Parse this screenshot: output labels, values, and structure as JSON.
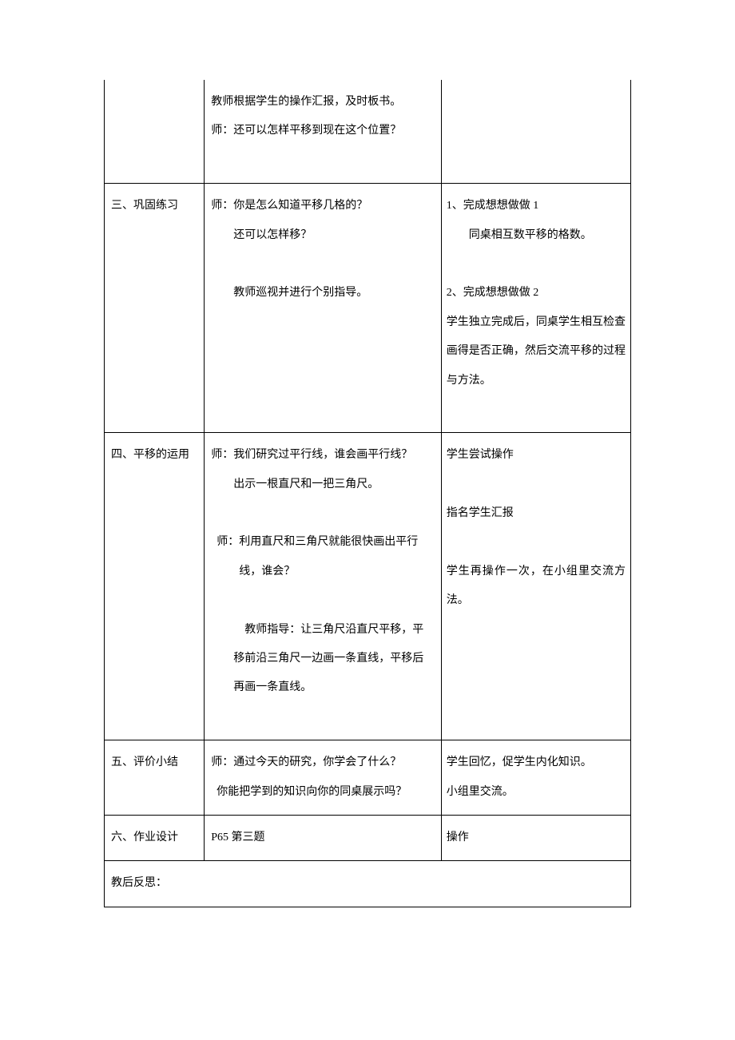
{
  "row1": {
    "col1": "",
    "col2_line1": "教师根据学生的操作汇报，及时板书。",
    "col2_line2": "师：还可以怎样平移到现在这个位置？",
    "col3": ""
  },
  "row2": {
    "col1": "三、巩固练习",
    "col2_line1": "师：你是怎么知道平移几格的？",
    "col2_line2": "还可以怎样移？",
    "col2_line3": "教师巡视并进行个别指导。",
    "col3_line1": "1、完成想想做做 1",
    "col3_line2": "同桌相互数平移的格数。",
    "col3_line3": "2、完成想想做做 2",
    "col3_line4": "学生独立完成后，同桌学生相互检查画得是否正确，然后交流平移的过程与方法。"
  },
  "row3": {
    "col1": "四、平移的运用",
    "col2_line1": "师：我们研究过平行线，谁会画平行线？",
    "col2_line2": "出示一根直尺和一把三角尺。",
    "col2_line3": "师：利用直尺和三角尺就能很快画出平行线，谁会？",
    "col2_line4": "教师指导：让三角尺沿直尺平移，平移前沿三角尺一边画一条直线，平移后再画一条直线。",
    "col3_line1": "学生尝试操作",
    "col3_line2": "指名学生汇报",
    "col3_line3": "学生再操作一次，在小组里交流方法。"
  },
  "row4": {
    "col1": "五、评价小结",
    "col2_line1": "师：通过今天的研究，你学会了什么？",
    "col2_line2": "你能把学到的知识向你的同桌展示吗？",
    "col3_line1": "学生回忆，促学生内化知识。",
    "col3_line2": "小组里交流。"
  },
  "row5": {
    "col1": "六、作业设计",
    "col2": "P65 第三题",
    "col3": "操作"
  },
  "row6": {
    "label": "教后反思："
  },
  "colors": {
    "border": "#000000",
    "text": "#000000",
    "background": "#ffffff"
  },
  "typography": {
    "font_family": "SimSun",
    "font_size": 14,
    "line_height": 2.6
  },
  "layout": {
    "col1_width_pct": 19,
    "col2_width_pct": 45,
    "col3_width_pct": 36
  }
}
